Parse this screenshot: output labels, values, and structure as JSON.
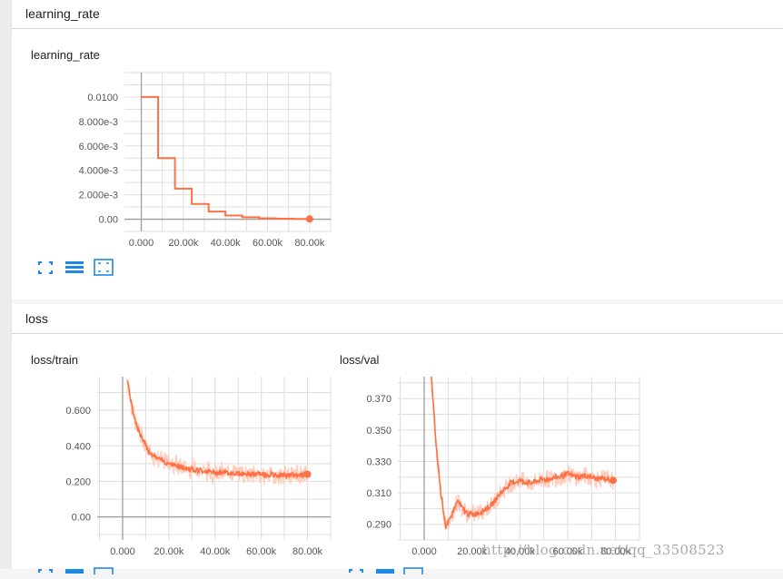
{
  "sections": [
    {
      "title": "learning_rate"
    },
    {
      "title": "loss"
    }
  ],
  "cards": [
    {
      "title": "learning_rate"
    },
    {
      "title": "loss/train"
    },
    {
      "title": "loss/val"
    }
  ],
  "watermark": "http://blog.csdn.net/qq_33508523",
  "icons": [
    "expand-icon",
    "list-icon",
    "fit-domain-icon"
  ],
  "colors": {
    "series": "#ff7043",
    "series_faint": "#ffccbc",
    "grid": "#dddddd",
    "axis": "#9e9e9e",
    "accent": "#1e88e5"
  },
  "chart_data": [
    {
      "type": "line",
      "title": "learning_rate",
      "xlim": [
        -8000,
        90000
      ],
      "ylim": [
        -0.001,
        0.012
      ],
      "xticks": [
        0,
        20000,
        40000,
        60000,
        80000
      ],
      "xtick_labels": [
        "0.000",
        "20.00k",
        "40.00k",
        "60.00k",
        "80.00k"
      ],
      "yticks": [
        0,
        0.002,
        0.004,
        0.006,
        0.008,
        0.01
      ],
      "ytick_labels": [
        "0.00",
        "2.000e-3",
        "4.000e-3",
        "6.000e-3",
        "8.000e-3",
        "0.0100"
      ],
      "grid": true,
      "series": [
        {
          "x": [
            0,
            8000,
            8000,
            16000,
            16000,
            24000,
            24000,
            32000,
            32000,
            40000,
            40000,
            48000,
            48000,
            56000,
            56000,
            64000,
            64000,
            72000,
            72000,
            80000
          ],
          "y": [
            0.01,
            0.01,
            0.005,
            0.005,
            0.0025,
            0.0025,
            0.00125,
            0.00125,
            0.000625,
            0.000625,
            0.0003,
            0.0003,
            0.00016,
            0.00016,
            8e-05,
            8e-05,
            4e-05,
            4e-05,
            2e-05,
            2e-05
          ]
        }
      ]
    },
    {
      "type": "line",
      "title": "loss/train",
      "xlim": [
        -11000,
        90000
      ],
      "ylim": [
        -0.13,
        0.79
      ],
      "xticks": [
        0,
        20000,
        40000,
        60000,
        80000
      ],
      "xtick_labels": [
        "0.000",
        "20.00k",
        "40.00k",
        "60.00k",
        "80.00k"
      ],
      "yticks": [
        0,
        0.2,
        0.4,
        0.6
      ],
      "ytick_labels": [
        "0.00",
        "0.200",
        "0.400",
        "0.600"
      ],
      "grid": true,
      "series": [
        {
          "x": [
            2000,
            4000,
            6000,
            8000,
            10000,
            12000,
            15000,
            18000,
            21000,
            25000,
            30000,
            35000,
            40000,
            45000,
            50000,
            55000,
            60000,
            65000,
            70000,
            75000,
            80000
          ],
          "y": [
            0.78,
            0.62,
            0.52,
            0.45,
            0.4,
            0.36,
            0.33,
            0.31,
            0.3,
            0.28,
            0.27,
            0.26,
            0.25,
            0.25,
            0.245,
            0.24,
            0.24,
            0.235,
            0.235,
            0.235,
            0.24
          ]
        }
      ]
    },
    {
      "type": "line",
      "title": "loss/val",
      "xlim": [
        -11000,
        90000
      ],
      "ylim": [
        0.28,
        0.384
      ],
      "xticks": [
        0,
        20000,
        40000,
        60000,
        80000
      ],
      "xtick_labels": [
        "0.000",
        "20.00k",
        "40.00k",
        "60.00k",
        "80.00k"
      ],
      "yticks": [
        0.29,
        0.31,
        0.33,
        0.35,
        0.37
      ],
      "ytick_labels": [
        "0.290",
        "0.310",
        "0.330",
        "0.350",
        "0.370"
      ],
      "grid": true,
      "series": [
        {
          "x": [
            3000,
            5000,
            7000,
            8000,
            9000,
            10000,
            12000,
            14000,
            16000,
            18000,
            20000,
            24000,
            28000,
            32000,
            36000,
            40000,
            44000,
            48000,
            52000,
            56000,
            60000,
            64000,
            68000,
            72000,
            76000,
            79000
          ],
          "y": [
            0.384,
            0.34,
            0.31,
            0.3,
            0.288,
            0.29,
            0.298,
            0.305,
            0.3,
            0.297,
            0.296,
            0.298,
            0.302,
            0.31,
            0.316,
            0.318,
            0.316,
            0.318,
            0.319,
            0.32,
            0.322,
            0.32,
            0.321,
            0.319,
            0.319,
            0.318
          ]
        }
      ]
    }
  ]
}
